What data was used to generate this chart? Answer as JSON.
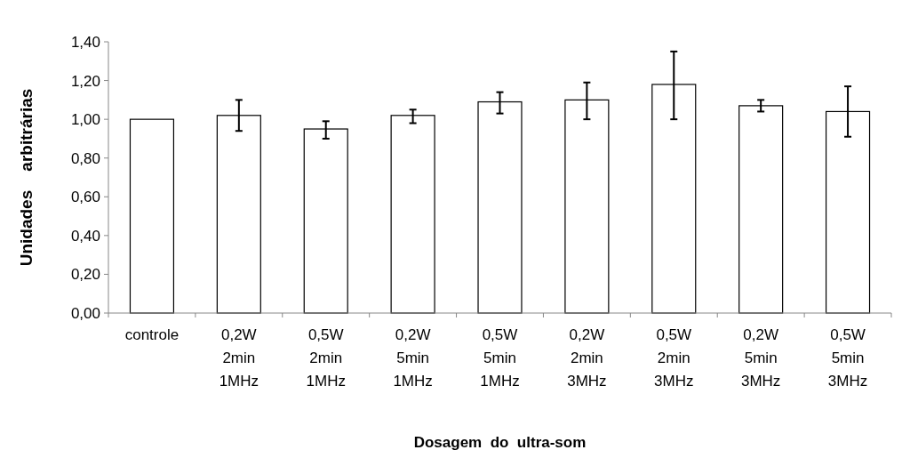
{
  "chart_data": {
    "type": "bar",
    "xlabel": "Dosagem  do  ultra-som",
    "ylabel": "Unidades    arbitrárias",
    "categories": [
      "controle",
      "0,2W 2min 1MHz",
      "0,5W 2min 1MHz",
      "0,2W 5min 1MHz",
      "0,5W 5min 1MHz",
      "0,2W 2min 3MHz",
      "0,5W 2min 3MHz",
      "0,2W 5min 3MHz",
      "0,5W 5min 3MHz"
    ],
    "values": [
      1.0,
      1.02,
      0.95,
      1.02,
      1.09,
      1.1,
      1.18,
      1.07,
      1.04
    ],
    "errors": [
      null,
      [
        0.94,
        1.1
      ],
      [
        0.9,
        0.99
      ],
      [
        0.98,
        1.05
      ],
      [
        1.03,
        1.14
      ],
      [
        1.0,
        1.19
      ],
      [
        1.0,
        1.35
      ],
      [
        1.04,
        1.1
      ],
      [
        0.91,
        1.17
      ]
    ],
    "color": "#ffffff",
    "ylim": [
      0,
      1.4
    ],
    "yticks": [
      {
        "value": 0,
        "label": "0,00"
      },
      {
        "value": 0.2,
        "label": "0,20"
      },
      {
        "value": 0.4,
        "label": "0,40"
      },
      {
        "value": 0.6,
        "label": "0,60"
      },
      {
        "value": 0.8,
        "label": "0,80"
      },
      {
        "value": 1.0,
        "label": "1,00"
      },
      {
        "value": 1.2,
        "label": "1,20"
      },
      {
        "value": 1.4,
        "label": "1,40"
      }
    ],
    "grid": false
  }
}
